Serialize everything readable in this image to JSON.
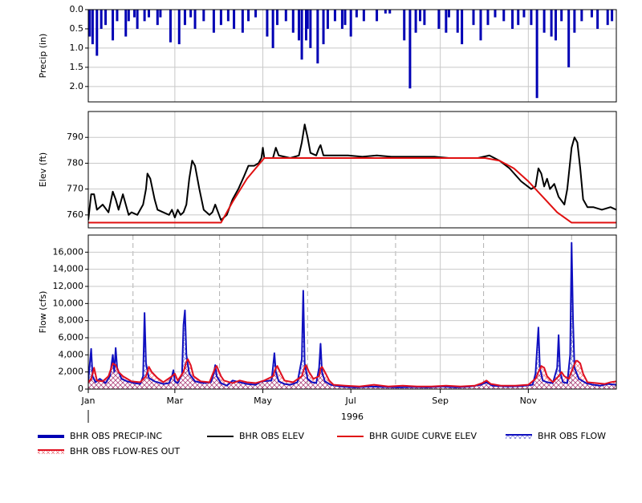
{
  "chart_data": [
    {
      "type": "bar",
      "y_label": "Precip (in)",
      "y_inverted": true,
      "xlim": [
        0,
        366
      ],
      "xticks": [
        0,
        60,
        121,
        182,
        244,
        305
      ],
      "ylim": [
        0,
        2.4
      ],
      "yticks": [
        {
          "value": 0,
          "label": "0.0"
        },
        0.5,
        {
          "value": 1,
          "label": "1.0"
        },
        1.5,
        {
          "value": 2,
          "label": "2.0"
        }
      ],
      "grid": true,
      "series": [
        {
          "name": "BHR OBS PRECIP-INC",
          "color": "#0000b4",
          "x": [
            1,
            3,
            6,
            9,
            12,
            17,
            20,
            26,
            28,
            32,
            34,
            39,
            42,
            48,
            50,
            57,
            63,
            67,
            71,
            74,
            80,
            87,
            92,
            97,
            101,
            107,
            111,
            116,
            124,
            128,
            131,
            137,
            142,
            146,
            148,
            151,
            152,
            154,
            159,
            163,
            166,
            171,
            176,
            178,
            182,
            186,
            191,
            200,
            206,
            209,
            219,
            223,
            227,
            230,
            233,
            243,
            248,
            250,
            256,
            259,
            267,
            272,
            277,
            282,
            288,
            294,
            298,
            302,
            307,
            311,
            316,
            321,
            324,
            328,
            333,
            337,
            342,
            349,
            353,
            360,
            363
          ],
          "values": [
            0.7,
            0.9,
            1.2,
            0.5,
            0.4,
            0.8,
            0.3,
            0.7,
            0.3,
            0.2,
            0.5,
            0.3,
            0.2,
            0.4,
            0.2,
            0.85,
            0.9,
            0.4,
            0.2,
            0.5,
            0.3,
            0.6,
            0.4,
            0.3,
            0.5,
            0.6,
            0.3,
            0.2,
            0.7,
            1.0,
            0.4,
            0.3,
            0.6,
            0.8,
            1.3,
            0.8,
            0.5,
            1.0,
            1.4,
            0.9,
            0.5,
            0.3,
            0.5,
            0.4,
            0.7,
            0.2,
            0.3,
            0.3,
            0.1,
            0.1,
            0.8,
            2.05,
            0.6,
            0.3,
            0.4,
            0.5,
            0.6,
            0.2,
            0.6,
            0.9,
            0.4,
            0.8,
            0.4,
            0.2,
            0.3,
            0.5,
            0.4,
            0.2,
            0.4,
            2.3,
            0.6,
            0.7,
            0.8,
            0.3,
            1.5,
            0.6,
            0.3,
            0.2,
            0.5,
            0.4,
            0.3
          ]
        }
      ]
    },
    {
      "type": "line",
      "y_label": "Elev (ft)",
      "xlim": [
        0,
        366
      ],
      "xticks": [
        0,
        60,
        121,
        182,
        244,
        305
      ],
      "ylim": [
        755,
        800
      ],
      "yticks": [
        760,
        770,
        780,
        790
      ],
      "grid": true,
      "series": [
        {
          "name": "BHR OBS ELEV",
          "color": "#000000",
          "x": [
            0,
            2,
            4,
            6,
            10,
            14,
            17,
            19,
            21,
            24,
            26,
            28,
            30,
            34,
            38,
            40,
            41,
            43,
            46,
            48,
            52,
            56,
            58,
            60,
            62,
            64,
            66,
            68,
            70,
            72,
            74,
            77,
            80,
            84,
            86,
            88,
            90,
            92,
            96,
            100,
            104,
            108,
            111,
            115,
            118,
            120,
            121,
            122,
            128,
            130,
            132,
            140,
            146,
            148,
            150,
            152,
            154,
            158,
            160,
            161,
            163,
            170,
            180,
            190,
            200,
            210,
            220,
            230,
            240,
            250,
            260,
            270,
            278,
            285,
            292,
            300,
            307,
            310,
            312,
            314,
            316,
            318,
            320,
            323,
            326,
            330,
            332,
            335,
            337,
            339,
            341,
            343,
            346,
            350,
            356,
            362,
            366
          ],
          "values": [
            758,
            768,
            768,
            762,
            764,
            761,
            769,
            766,
            762,
            768,
            764,
            760,
            761,
            760,
            764,
            770,
            776,
            774,
            766,
            762,
            761,
            760,
            762,
            759,
            762,
            760,
            761,
            764,
            774,
            781,
            779,
            770,
            762,
            760,
            761,
            764,
            761,
            758,
            760,
            766,
            770,
            775,
            779,
            779,
            780,
            782,
            786,
            782,
            782,
            786,
            783,
            782,
            783,
            788,
            795,
            790,
            784,
            783,
            786,
            787,
            783,
            783,
            783,
            782.5,
            783,
            782.5,
            782.5,
            782.5,
            782.5,
            782,
            782,
            782,
            783,
            781,
            778,
            773,
            770,
            771,
            778,
            776,
            771,
            774,
            770,
            772,
            767,
            764,
            770,
            786,
            790,
            788,
            778,
            766,
            763,
            763,
            762,
            763,
            762
          ]
        },
        {
          "name": "BHR GUIDE CURVE ELEV",
          "color": "#e01010",
          "x": [
            0,
            92,
            100,
            110,
            122,
            275,
            285,
            295,
            305,
            315,
            325,
            335,
            366
          ],
          "values": [
            757,
            757,
            765,
            774,
            782,
            782,
            781,
            778,
            773,
            767,
            761,
            757,
            757
          ]
        }
      ]
    },
    {
      "type": "line",
      "y_label": "Flow (cfs)",
      "x_label": "1996",
      "xlim": [
        0,
        366
      ],
      "xticks": [
        {
          "value": 0,
          "label": "Jan"
        },
        {
          "value": 60,
          "label": "Mar"
        },
        {
          "value": 121,
          "label": "May"
        },
        {
          "value": 182,
          "label": "Jul"
        },
        {
          "value": 244,
          "label": "Sep"
        },
        {
          "value": 305,
          "label": "Nov"
        }
      ],
      "xminorticks": [
        31,
        91,
        152,
        213,
        274,
        335
      ],
      "ylim": [
        0,
        18000
      ],
      "yticks": [
        0,
        {
          "value": 2000,
          "label": "2,000"
        },
        {
          "value": 4000,
          "label": "4,000"
        },
        {
          "value": 6000,
          "label": "6,000"
        },
        {
          "value": 8000,
          "label": "8,000"
        },
        {
          "value": 10000,
          "label": "10,000"
        },
        {
          "value": 12000,
          "label": "12,000"
        },
        {
          "value": 14000,
          "label": "14,000"
        },
        {
          "value": 16000,
          "label": "16,000"
        }
      ],
      "grid": true,
      "series": [
        {
          "name": "BHR OBS FLOW",
          "color": "#1010c0",
          "hatch": true,
          "x": [
            0,
            2,
            3,
            5,
            8,
            12,
            15,
            17,
            18,
            19,
            20,
            23,
            27,
            32,
            36,
            38,
            39,
            40,
            42,
            46,
            52,
            56,
            58,
            59,
            60,
            62,
            65,
            66,
            67,
            68,
            70,
            74,
            80,
            85,
            87,
            88,
            89,
            92,
            96,
            100,
            105,
            110,
            116,
            120,
            127,
            128,
            129,
            130,
            132,
            136,
            140,
            145,
            148,
            149,
            150,
            152,
            155,
            158,
            160,
            161,
            162,
            164,
            168,
            175,
            185,
            195,
            205,
            215,
            225,
            235,
            245,
            255,
            265,
            272,
            276,
            280,
            290,
            300,
            308,
            310,
            312,
            313,
            315,
            318,
            322,
            325,
            326,
            327,
            329,
            332,
            334,
            335,
            336,
            337,
            340,
            345,
            350,
            355,
            360,
            366
          ],
          "values": [
            1000,
            4700,
            1500,
            800,
            1200,
            700,
            1500,
            4000,
            2000,
            4800,
            2500,
            1200,
            900,
            700,
            600,
            1500,
            8900,
            3000,
            1300,
            900,
            600,
            700,
            1500,
            2200,
            900,
            700,
            1800,
            7500,
            9200,
            4000,
            1800,
            900,
            700,
            800,
            1800,
            2800,
            1500,
            700,
            400,
            1000,
            800,
            600,
            500,
            900,
            1000,
            2500,
            4200,
            2000,
            900,
            600,
            500,
            800,
            3500,
            11500,
            3000,
            1200,
            800,
            700,
            2500,
            5300,
            2000,
            900,
            500,
            300,
            200,
            300,
            250,
            200,
            250,
            200,
            300,
            200,
            300,
            500,
            800,
            400,
            300,
            350,
            500,
            1800,
            7200,
            2500,
            1000,
            800,
            700,
            2500,
            6300,
            2000,
            800,
            700,
            4000,
            17100,
            8000,
            2500,
            1200,
            700,
            500,
            400,
            600,
            500
          ]
        },
        {
          "name": "BHR OBS FLOW-RES OUT",
          "color": "#e01020",
          "hatch": true,
          "x": [
            0,
            2,
            4,
            6,
            10,
            14,
            16,
            17,
            19,
            21,
            24,
            30,
            36,
            40,
            42,
            44,
            48,
            52,
            58,
            60,
            62,
            66,
            68,
            69,
            71,
            73,
            78,
            84,
            88,
            89,
            92,
            94,
            100,
            105,
            110,
            116,
            122,
            128,
            130,
            131,
            133,
            136,
            142,
            148,
            150,
            151,
            153,
            156,
            160,
            161,
            162,
            164,
            167,
            170,
            178,
            188,
            198,
            208,
            218,
            228,
            238,
            248,
            258,
            268,
            273,
            276,
            279,
            286,
            296,
            305,
            310,
            312,
            314,
            316,
            318,
            322,
            326,
            328,
            330,
            333,
            336,
            338,
            339,
            341,
            343,
            346,
            352,
            358,
            362,
            366
          ],
          "values": [
            800,
            1200,
            2500,
            1000,
            900,
            1500,
            2500,
            3000,
            2800,
            2000,
            1500,
            900,
            800,
            1500,
            2600,
            2000,
            1300,
            800,
            1500,
            1800,
            1000,
            2000,
            3200,
            3500,
            2800,
            1500,
            900,
            800,
            2500,
            2700,
            1500,
            1000,
            700,
            1000,
            800,
            700,
            1000,
            1500,
            2500,
            2700,
            2000,
            1000,
            800,
            1500,
            2600,
            2800,
            2000,
            1200,
            1500,
            2400,
            2600,
            2000,
            1000,
            500,
            400,
            300,
            500,
            300,
            400,
            300,
            300,
            400,
            300,
            400,
            700,
            1000,
            600,
            400,
            400,
            500,
            1200,
            2000,
            2700,
            2500,
            1500,
            800,
            1500,
            2000,
            1500,
            1200,
            2500,
            3300,
            3300,
            3000,
            1800,
            800,
            700,
            600,
            800,
            900
          ]
        }
      ]
    }
  ]
}
